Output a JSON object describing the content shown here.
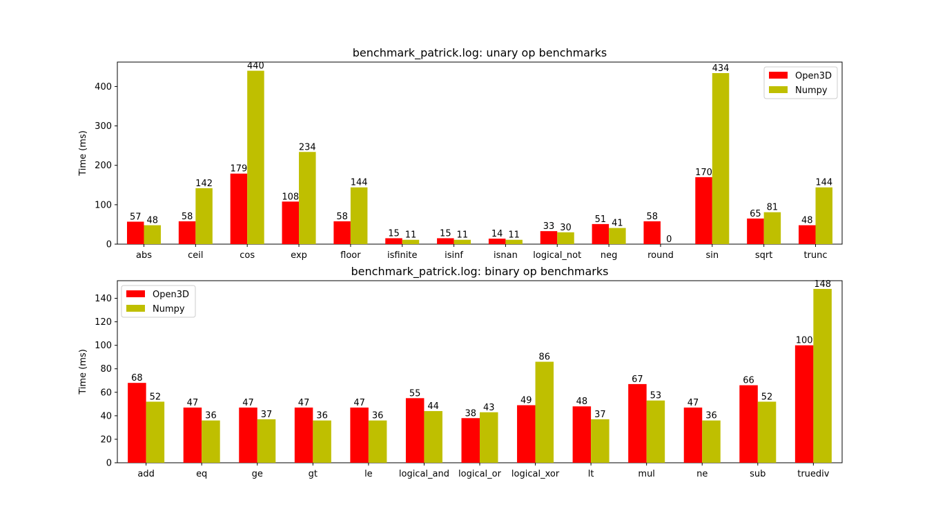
{
  "colors": {
    "open3d": "#ff0000",
    "numpy": "#bfbf00"
  },
  "chart_data": [
    {
      "type": "bar",
      "title": "benchmark_patrick.log: unary op benchmarks",
      "xlabel": "",
      "ylabel": "Time (ms)",
      "ylim": [
        0,
        462
      ],
      "yticks": [
        "0",
        "100",
        "200",
        "300",
        "400"
      ],
      "legend_position": "top-right",
      "categories": [
        "abs",
        "ceil",
        "cos",
        "exp",
        "floor",
        "isfinite",
        "isinf",
        "isnan",
        "logical_not",
        "neg",
        "round",
        "sin",
        "sqrt",
        "trunc"
      ],
      "series": [
        {
          "name": "Open3D",
          "values": [
            57,
            58,
            179,
            108,
            58,
            15,
            15,
            14,
            33,
            51,
            58,
            170,
            65,
            48
          ]
        },
        {
          "name": "Numpy",
          "values": [
            48,
            142,
            440,
            234,
            144,
            11,
            11,
            11,
            30,
            41,
            0,
            434,
            81,
            144
          ]
        }
      ]
    },
    {
      "type": "bar",
      "title": "benchmark_patrick.log: binary op benchmarks",
      "xlabel": "",
      "ylabel": "Time (ms)",
      "ylim": [
        0,
        155
      ],
      "yticks": [
        "0",
        "20",
        "40",
        "60",
        "80",
        "100",
        "120",
        "140"
      ],
      "legend_position": "top-left",
      "categories": [
        "add",
        "eq",
        "ge",
        "gt",
        "le",
        "logical_and",
        "logical_or",
        "logical_xor",
        "lt",
        "mul",
        "ne",
        "sub",
        "truediv"
      ],
      "series": [
        {
          "name": "Open3D",
          "values": [
            68,
            47,
            47,
            47,
            47,
            55,
            38,
            49,
            48,
            67,
            47,
            66,
            100
          ]
        },
        {
          "name": "Numpy",
          "values": [
            52,
            36,
            37,
            36,
            36,
            44,
            43,
            86,
            37,
            53,
            36,
            52,
            148
          ]
        }
      ]
    }
  ]
}
